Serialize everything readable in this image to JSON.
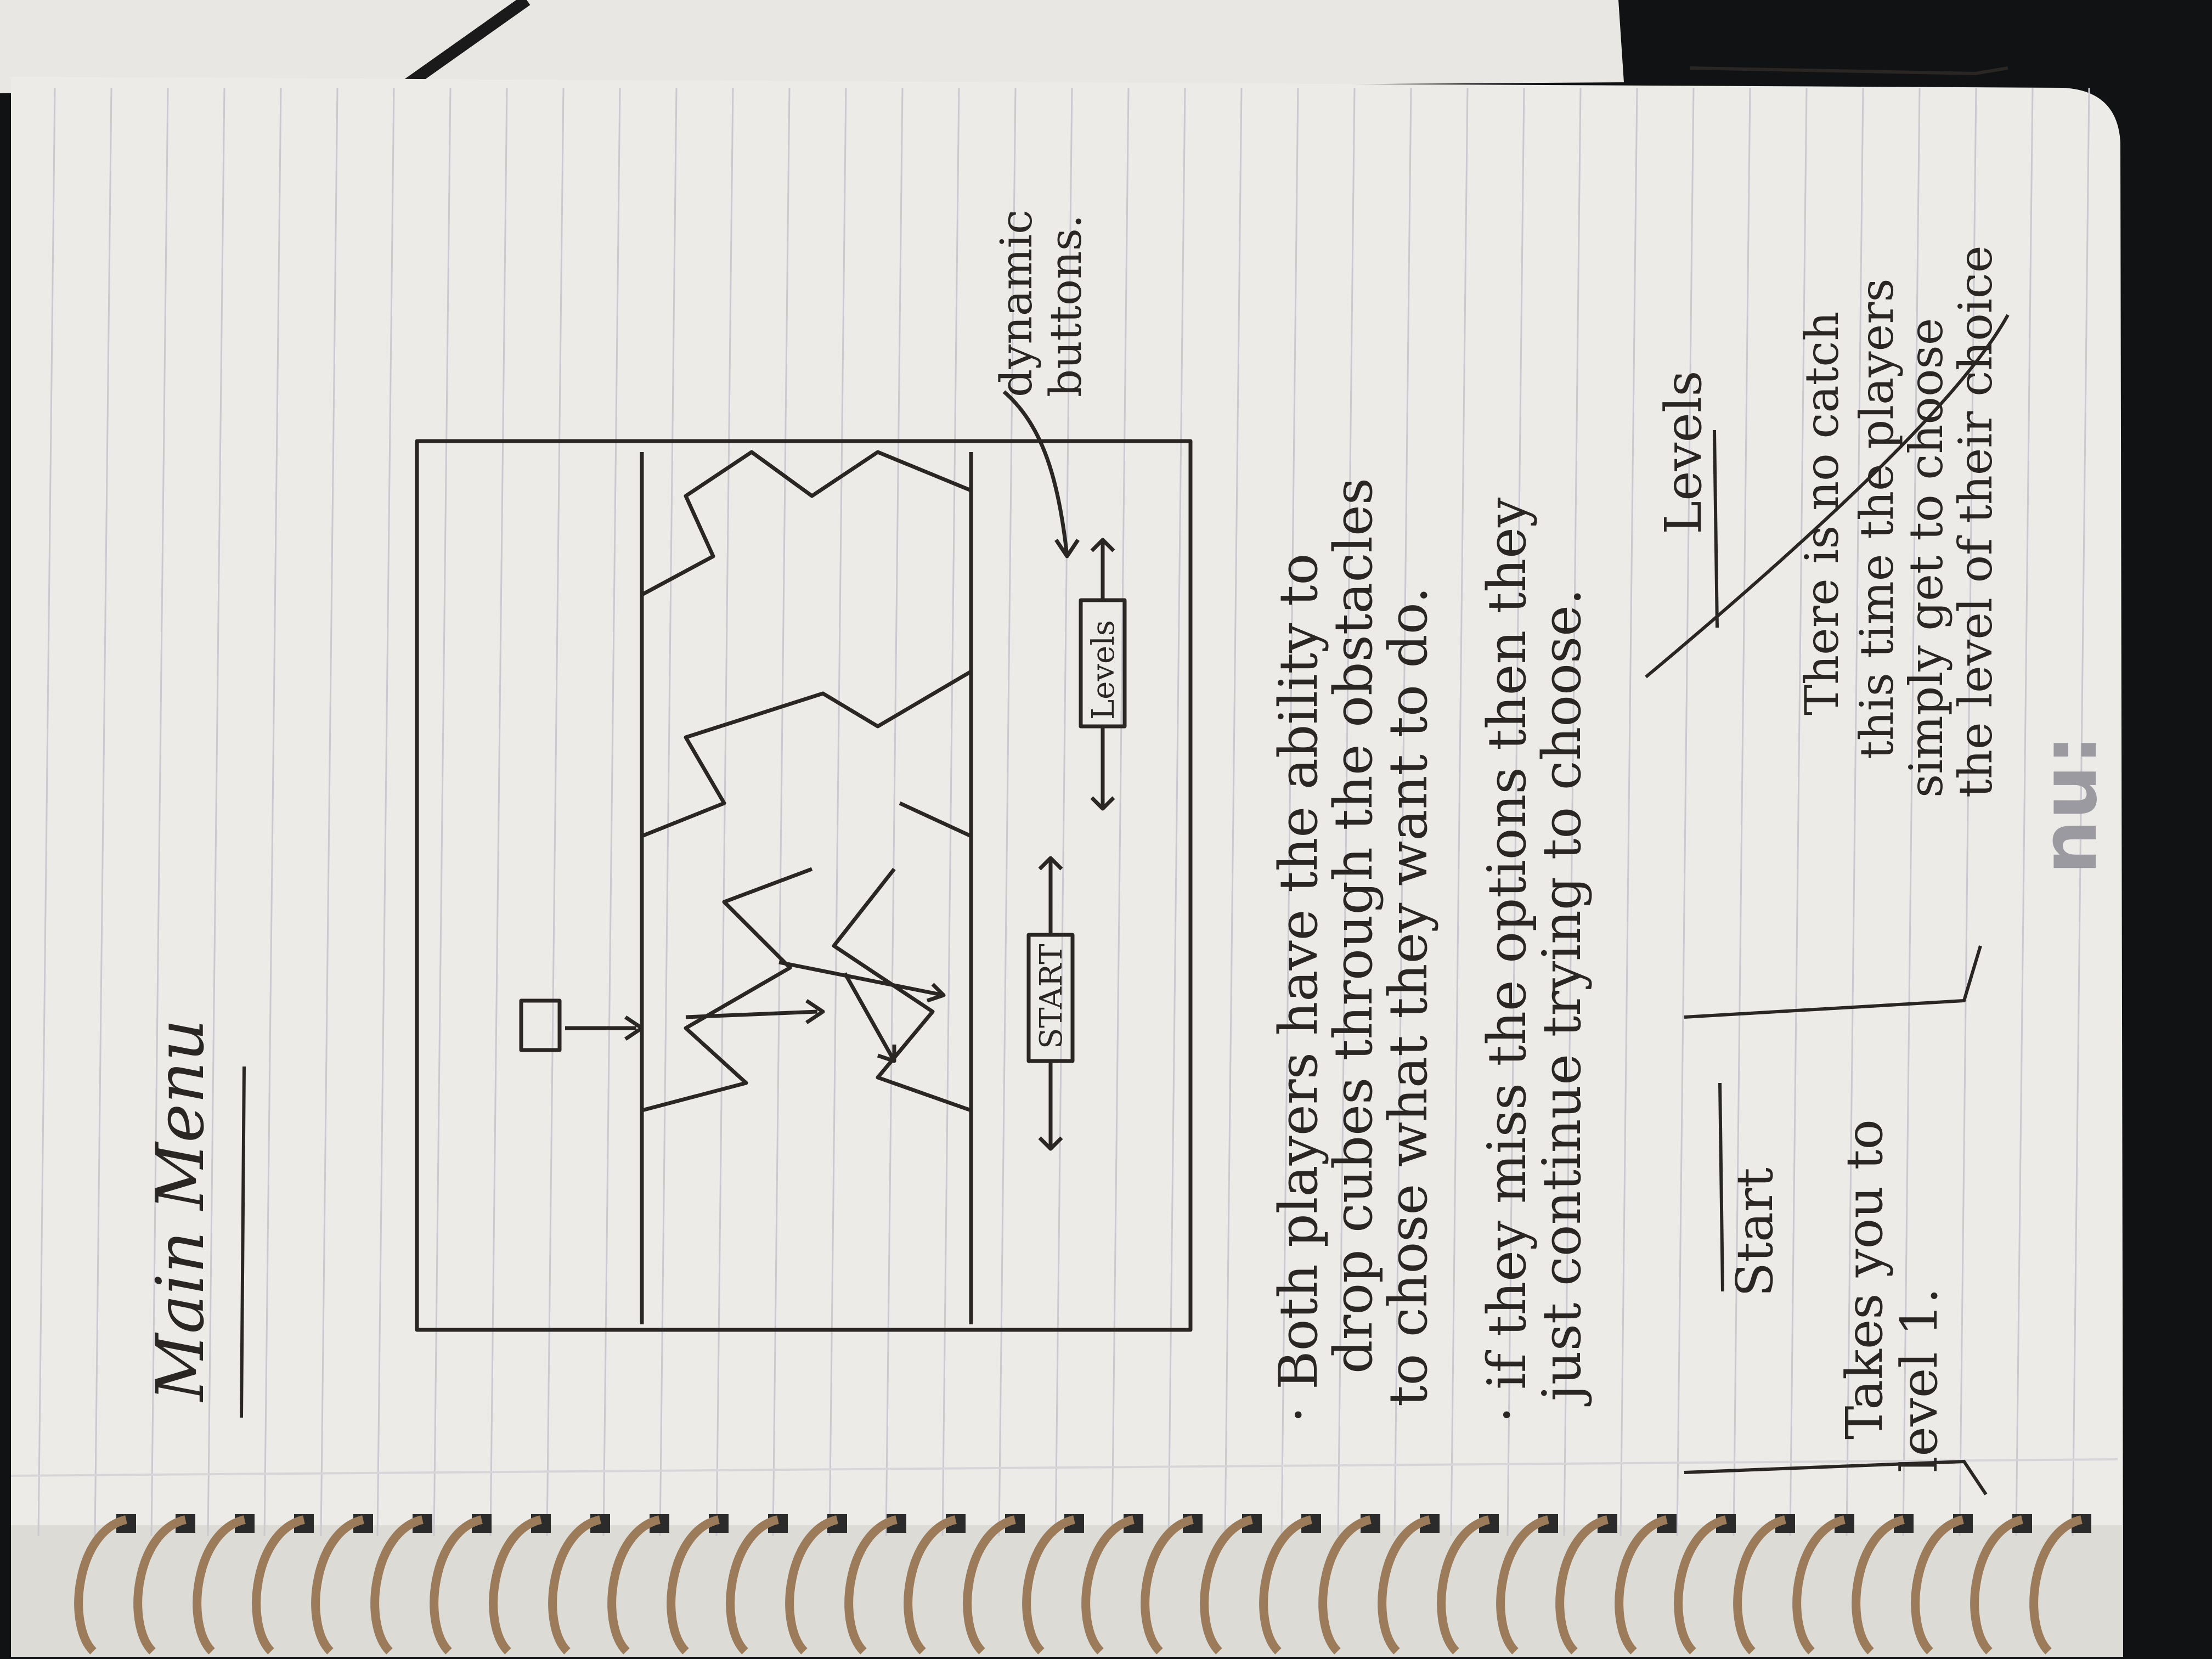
{
  "colors": {
    "paper": "#ecebe8",
    "ink": "#2a2624",
    "background": "#111214",
    "coil": "#9c7b5a"
  },
  "notebook": {
    "brand_logo": "nu:",
    "heading": "Main Menu",
    "sketch": {
      "start_button_label": "START",
      "levels_button_label": "Levels",
      "callout": [
        "dynamic",
        "buttons."
      ]
    },
    "notes": [
      [
        "· Both players have the ability to",
        "drop cubes through the obstacles",
        "to chose what they want to do."
      ],
      [
        "· if they miss the options then they",
        "just continue trying to choose."
      ]
    ],
    "start_box": {
      "title": "Start",
      "lines": [
        "Takes you to",
        "level 1."
      ]
    },
    "levels_box": {
      "title": "Levels",
      "lines": [
        "There is no catch",
        "this time the players",
        "simply get to choose",
        "the level of their choice"
      ]
    }
  }
}
